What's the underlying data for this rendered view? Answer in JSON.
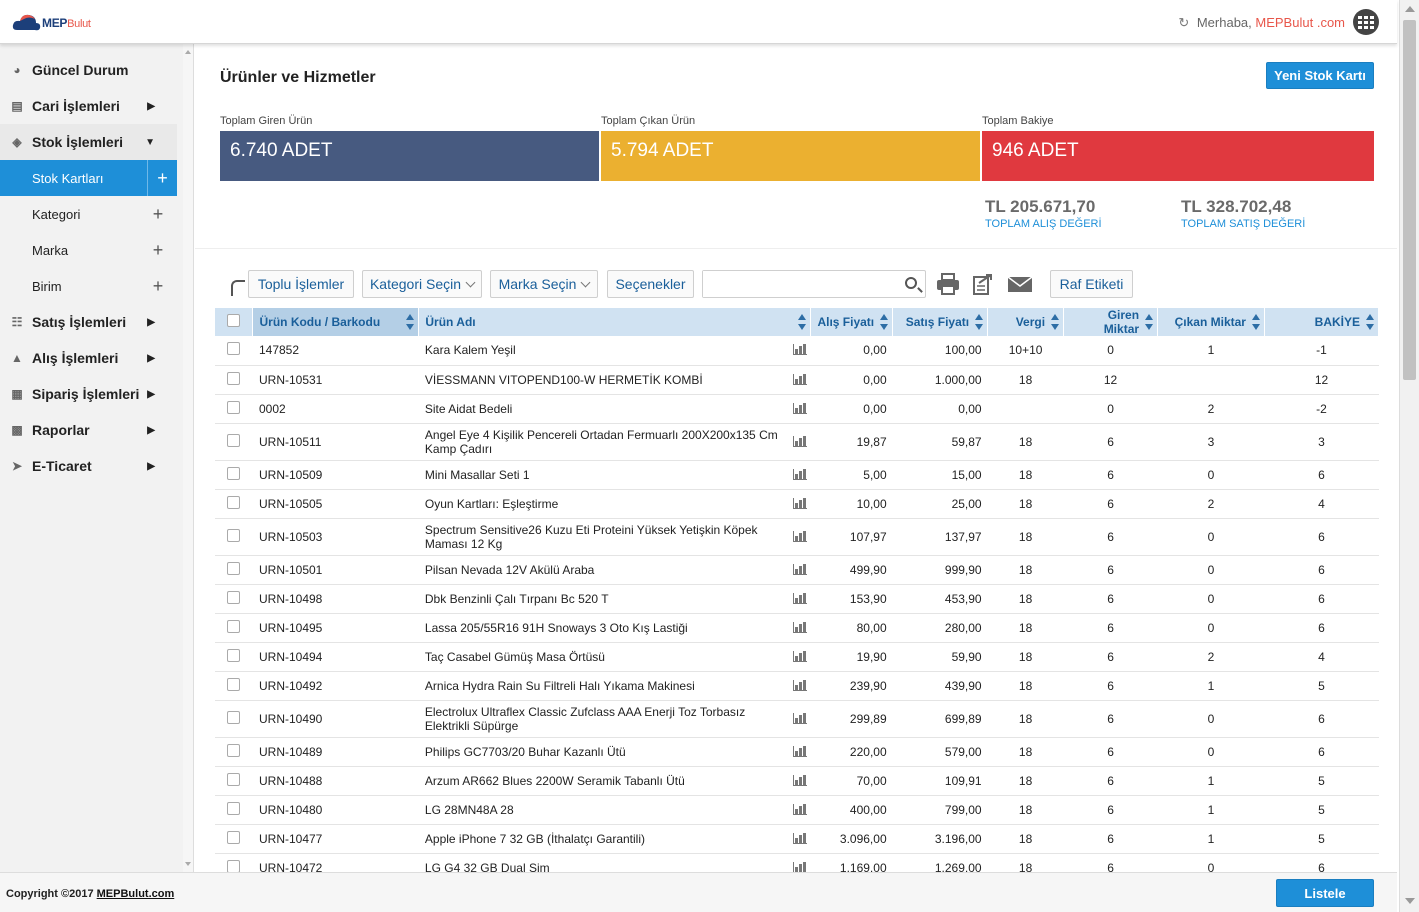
{
  "header": {
    "logo_text": "MEP",
    "logo_text_sub": "Bulut",
    "greeting": "Merhaba,",
    "user_name": "MEPBulut",
    "user_domain": ".com"
  },
  "sidebar": {
    "items": [
      {
        "label": "Güncel Durum",
        "icon": "dashboard-icon"
      },
      {
        "label": "Cari İşlemleri",
        "icon": "contacts-icon"
      },
      {
        "label": "Stok İşlemleri",
        "icon": "box-icon"
      },
      {
        "label": "Satış İşlemleri",
        "icon": "cart-icon"
      },
      {
        "label": "Alış İşlemleri",
        "icon": "bag-icon"
      },
      {
        "label": "Sipariş İşlemleri",
        "icon": "clipboard-icon"
      },
      {
        "label": "Raporlar",
        "icon": "chart-icon"
      },
      {
        "label": "E-Ticaret",
        "icon": "pointer-icon"
      }
    ],
    "sub_items": [
      "Stok Kartları",
      "Kategori",
      "Marka",
      "Birim"
    ]
  },
  "page": {
    "title": "Ürünler ve Hizmetler",
    "new_button": "Yeni Stok Kartı"
  },
  "stats": {
    "in_label": "Toplam Giren Ürün",
    "in_value": "6.740 ADET",
    "out_label": "Toplam Çıkan Ürün",
    "out_value": "5.794 ADET",
    "bal_label": "Toplam Bakiye",
    "bal_value": "946 ADET",
    "buy_value": "TL 205.671,70",
    "buy_label": "TOPLAM ALIŞ DEĞERİ",
    "sell_value": "TL 328.702,48",
    "sell_label": "TOPLAM SATIŞ DEĞERİ",
    "colors": {
      "in": "#475a80",
      "out": "#ebb030",
      "bal": "#e0393f"
    }
  },
  "toolbar": {
    "bulk": "Toplu İşlemler",
    "category": "Kategori Seçin",
    "brand": "Marka Seçin",
    "options": "Seçenekler",
    "search_value": "",
    "shelf_label": "Raf Etiketi"
  },
  "table": {
    "headers": [
      "Ürün Kodu / Barkodu",
      "Ürün Adı",
      "Alış Fiyatı",
      "Satış Fiyatı",
      "Vergi",
      "Giren Miktar",
      "Çıkan Miktar",
      "BAKİYE"
    ],
    "rows": [
      [
        "147852",
        "Kara Kalem Yeşil",
        "0,00",
        "100,00",
        "10+10",
        "0",
        "1",
        "-1"
      ],
      [
        "URN-10531",
        "VİESSMANN VITOPEND100-W HERMETİK KOMBİ",
        "0,00",
        "1.000,00",
        "18",
        "12",
        "",
        "12"
      ],
      [
        "0002",
        "Site Aidat Bedeli",
        "0,00",
        "0,00",
        "",
        "0",
        "2",
        "-2"
      ],
      [
        "URN-10511",
        "Angel Eye 4 Kişilik Pencereli Ortadan Fermuarlı 200X200x135 Cm Kamp Çadırı",
        "19,87",
        "59,87",
        "18",
        "6",
        "3",
        "3"
      ],
      [
        "URN-10509",
        "Mini Masallar Seti 1",
        "5,00",
        "15,00",
        "18",
        "6",
        "0",
        "6"
      ],
      [
        "URN-10505",
        "Oyun Kartları: Eşleştirme",
        "10,00",
        "25,00",
        "18",
        "6",
        "2",
        "4"
      ],
      [
        "URN-10503",
        "Spectrum Sensitive26 Kuzu Eti Proteini Yüksek Yetişkin Köpek Maması 12 Kg",
        "107,97",
        "137,97",
        "18",
        "6",
        "0",
        "6"
      ],
      [
        "URN-10501",
        "Pilsan Nevada 12V Akülü Araba",
        "499,90",
        "999,90",
        "18",
        "6",
        "0",
        "6"
      ],
      [
        "URN-10498",
        "Dbk Benzinli Çalı Tırpanı Bc 520 T",
        "153,90",
        "453,90",
        "18",
        "6",
        "0",
        "6"
      ],
      [
        "URN-10495",
        "Lassa 205/55R16 91H Snoways 3 Oto Kış Lastiği",
        "80,00",
        "280,00",
        "18",
        "6",
        "0",
        "6"
      ],
      [
        "URN-10494",
        "Taç Casabel Gümüş Masa Örtüsü",
        "19,90",
        "59,90",
        "18",
        "6",
        "2",
        "4"
      ],
      [
        "URN-10492",
        "Arnica Hydra Rain Su Filtreli Halı Yıkama Makinesi",
        "239,90",
        "439,90",
        "18",
        "6",
        "1",
        "5"
      ],
      [
        "URN-10490",
        "Electrolux Ultraflex Classic Zufclass AAA Enerji Toz Torbasız Elektrikli Süpürge",
        "299,89",
        "699,89",
        "18",
        "6",
        "0",
        "6"
      ],
      [
        "URN-10489",
        "Philips GC7703/20 Buhar Kazanlı Ütü",
        "220,00",
        "579,00",
        "18",
        "6",
        "0",
        "6"
      ],
      [
        "URN-10488",
        "Arzum AR662 Blues 2200W Seramik Tabanlı Ütü",
        "70,00",
        "109,91",
        "18",
        "6",
        "1",
        "5"
      ],
      [
        "URN-10480",
        "LG 28MN48A 28",
        "400,00",
        "799,00",
        "18",
        "6",
        "1",
        "5"
      ],
      [
        "URN-10477",
        "Apple iPhone 7 32 GB (İthalatçı Garantili)",
        "3.096,00",
        "3.196,00",
        "18",
        "6",
        "1",
        "5"
      ],
      [
        "URN-10472",
        "LG G4 32 GB Dual Sim",
        "1.169,00",
        "1.269,00",
        "18",
        "6",
        "0",
        "6"
      ]
    ]
  },
  "footer": {
    "copyright": "Copyright ©2017",
    "link": "MEPBulut.com",
    "list_button": "Listele"
  }
}
